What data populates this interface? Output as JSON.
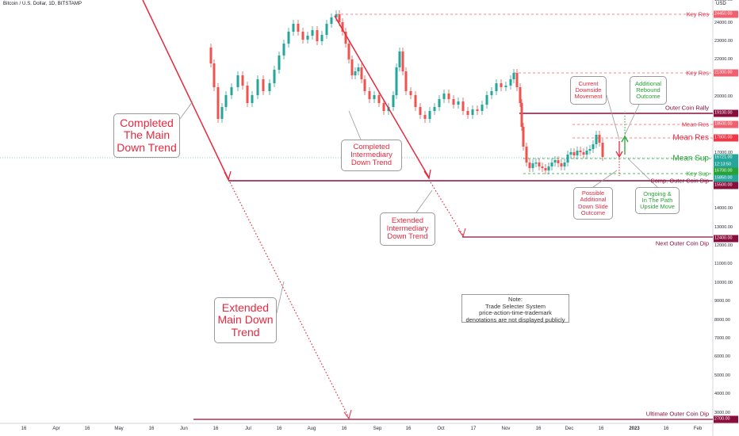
{
  "header": {
    "title": "Bitcoin / U.S. Dollar, 1D, BITSTAMP",
    "currency": "USD"
  },
  "colors": {
    "red": "#e8283e",
    "green": "#26a334",
    "maroon": "#8a0e3b",
    "candle_up": "#26a69a",
    "candle_down": "#ef5350"
  },
  "price_axis": {
    "labels": [
      "24000.00",
      "23000.00",
      "22000.00",
      "20000.00",
      "18000.00",
      "17000.00",
      "14000.00",
      "13000.00",
      "12000.00",
      "11000.00",
      "10000.00",
      "9000.00",
      "8000.00",
      "7000.00",
      "6000.00",
      "5000.00",
      "4000.00",
      "3000.00"
    ],
    "tags": [
      {
        "text": "24450.00",
        "role": "key-res"
      },
      {
        "text": "21300.00",
        "role": "key-res"
      },
      {
        "text": "19100.00",
        "role": "outer-coin-rally"
      },
      {
        "text": "18500.00",
        "role": "mean-res"
      },
      {
        "text": "17800.00",
        "role": "mean-res-2"
      },
      {
        "text": "16721.00",
        "role": "last-price"
      },
      {
        "text": "12:13:50",
        "role": "countdown"
      },
      {
        "text": "16700.00",
        "role": "mean-sup"
      },
      {
        "text": "15850.00",
        "role": "key-sup"
      },
      {
        "text": "15500.00",
        "role": "comp-outer-coin-dip"
      },
      {
        "text": "12400.00",
        "role": "next-outer-coin-dip"
      },
      {
        "text": "2700.00",
        "role": "ultimate-outer-coin-dip"
      }
    ]
  },
  "time_axis": {
    "labels": [
      "16",
      "Apr",
      "16",
      "May",
      "16",
      "Jun",
      "16",
      "Jul",
      "16",
      "Aug",
      "16",
      "Sep",
      "16",
      "Oct",
      "17",
      "Nov",
      "16",
      "Dec",
      "16",
      "2023",
      "16",
      "Feb"
    ]
  },
  "levels": {
    "key_res_top": "Key Res",
    "key_res_2": "Key Res",
    "outer_coin_rally": "Outer Coin Rally",
    "mean_res": "Mean Res",
    "mean_res_2": "Mean Res",
    "mean_sup": "Mean Sup",
    "key_sup": "Key Sup",
    "comp_outer_coin_dip": "Comp. Outer Coin Dip",
    "next_outer_coin_dip": "Next Outer Coin Dip",
    "ultimate_outer_coin_dip": "Ultimate Outer Coin Dip"
  },
  "annotations": {
    "completed_main": "Completed\nThe Main\nDown Trend",
    "completed_intermediary": "Completed\nIntermediary\nDown Trend",
    "extended_intermediary": "Extended\nIntermediary\nDown Trend",
    "extended_main": "Extended\nMain Down\nTrend",
    "current_downside": "Current\nDownside\nMovement",
    "additional_rebound": "Additional\nRebound\nOutcome",
    "possible_downslide": "Possible\nAdditional\nDown Slide\nOutcome",
    "ongoing_upside": "Ongoing &\nIn The Path\nUpside Move",
    "note": "Note:\nTrade Selecter System\nprice-action-time-trademark\ndenotations are not displayed publicly"
  }
}
